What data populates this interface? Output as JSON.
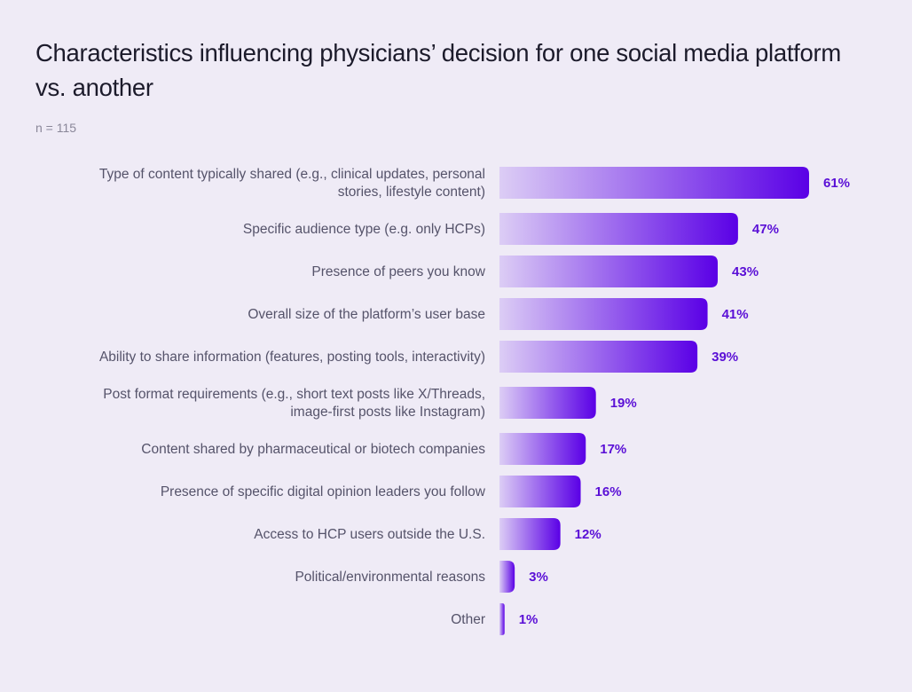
{
  "chart_data": {
    "type": "bar",
    "orientation": "horizontal",
    "title": "Characteristics influencing physicians’ decision for one social media platform vs. another",
    "subtitle": "n = 115",
    "xlabel": "",
    "ylabel": "",
    "xlim": [
      0,
      61
    ],
    "grid": false,
    "value_suffix": "%",
    "bar_gradient": [
      "#dccdf5",
      "#5a00e6"
    ],
    "label_color": "#55536a",
    "value_color": "#5a0fd6",
    "categories": [
      [
        "Type of content typically shared (e.g., clinical updates, personal",
        "stories, lifestyle content)"
      ],
      [
        "Specific audience type (e.g. only HCPs)"
      ],
      [
        "Presence of peers you know"
      ],
      [
        "Overall size of the platform’s user base"
      ],
      [
        "Ability to share information (features, posting tools, interactivity)"
      ],
      [
        "Post format requirements (e.g., short text posts like X/Threads,",
        "image-first posts like Instagram)"
      ],
      [
        "Content shared by pharmaceutical or biotech companies"
      ],
      [
        "Presence of specific digital opinion leaders you follow"
      ],
      [
        "Access to HCP users outside the U.S."
      ],
      [
        "Political/environmental reasons"
      ],
      [
        "Other"
      ]
    ],
    "values": [
      61,
      47,
      43,
      41,
      39,
      19,
      17,
      16,
      12,
      3,
      1
    ],
    "value_labels": [
      "61%",
      "47%",
      "43%",
      "41%",
      "39%",
      "19%",
      "17%",
      "16%",
      "12%",
      "3%",
      "1%"
    ]
  }
}
